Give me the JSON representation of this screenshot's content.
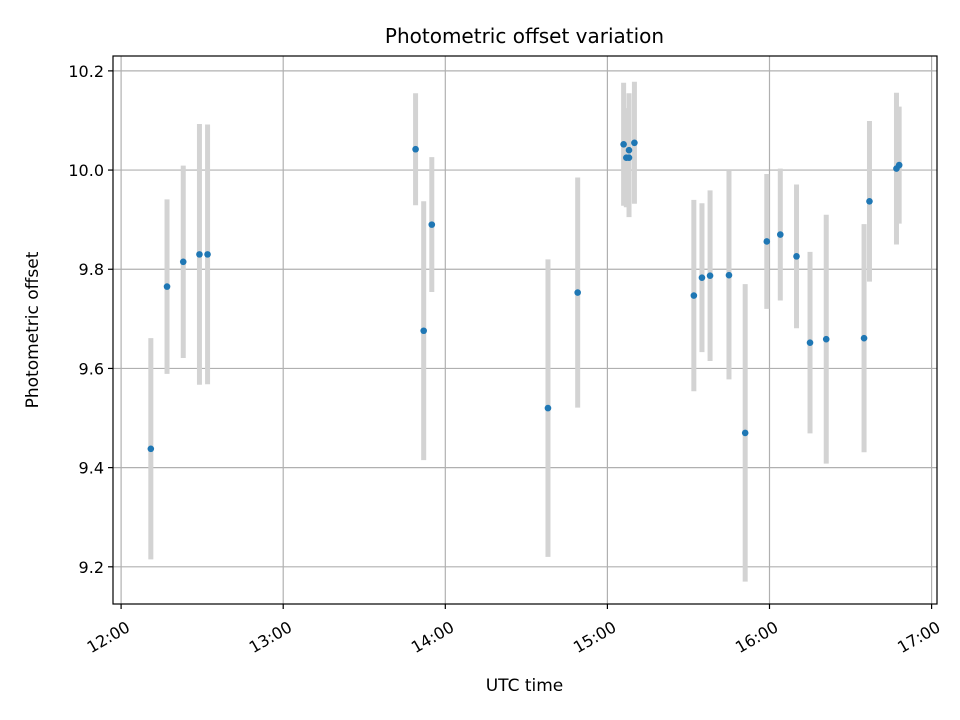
{
  "chart_data": {
    "type": "scatter",
    "title": "Photometric offset variation",
    "xlabel": "UTC time",
    "ylabel": "Photometric offset",
    "xlim": [
      "11:57",
      "17:02"
    ],
    "ylim": [
      9.125,
      10.23
    ],
    "x_ticks": [
      "12:00",
      "13:00",
      "14:00",
      "15:00",
      "16:00",
      "17:00"
    ],
    "y_ticks": [
      9.2,
      9.4,
      9.6,
      9.8,
      10.0,
      10.2
    ],
    "grid": true,
    "point_color": "#1f77b4",
    "errorbar_color": "#d3d3d3",
    "points": [
      {
        "t": "12:11",
        "y": 9.438,
        "err": 0.223
      },
      {
        "t": "12:17",
        "y": 9.765,
        "err": 0.176
      },
      {
        "t": "12:23",
        "y": 9.815,
        "err": 0.194
      },
      {
        "t": "12:29",
        "y": 9.83,
        "err": 0.263
      },
      {
        "t": "12:32",
        "y": 9.83,
        "err": 0.262
      },
      {
        "t": "13:49",
        "y": 10.042,
        "err": 0.113
      },
      {
        "t": "13:52",
        "y": 9.676,
        "err": 0.261
      },
      {
        "t": "13:55",
        "y": 9.89,
        "err": 0.136
      },
      {
        "t": "14:38",
        "y": 9.52,
        "err": 0.3
      },
      {
        "t": "14:49",
        "y": 9.753,
        "err": 0.232
      },
      {
        "t": "15:06",
        "y": 10.052,
        "err": 0.124
      },
      {
        "t": "15:07",
        "y": 10.025,
        "err": 0.1
      },
      {
        "t": "15:08",
        "y": 10.04,
        "err": 0.115
      },
      {
        "t": "15:08",
        "y": 10.025,
        "err": 0.12
      },
      {
        "t": "15:10",
        "y": 10.055,
        "err": 0.123
      },
      {
        "t": "15:32",
        "y": 9.747,
        "err": 0.193
      },
      {
        "t": "15:35",
        "y": 9.783,
        "err": 0.15
      },
      {
        "t": "15:38",
        "y": 9.787,
        "err": 0.172
      },
      {
        "t": "15:45",
        "y": 9.788,
        "err": 0.21
      },
      {
        "t": "15:51",
        "y": 9.47,
        "err": 0.3
      },
      {
        "t": "15:59",
        "y": 9.856,
        "err": 0.136
      },
      {
        "t": "16:04",
        "y": 9.87,
        "err": 0.133
      },
      {
        "t": "16:10",
        "y": 9.826,
        "err": 0.145
      },
      {
        "t": "16:15",
        "y": 9.652,
        "err": 0.183
      },
      {
        "t": "16:21",
        "y": 9.659,
        "err": 0.251
      },
      {
        "t": "16:35",
        "y": 9.661,
        "err": 0.23
      },
      {
        "t": "16:37",
        "y": 9.937,
        "err": 0.162
      },
      {
        "t": "16:47",
        "y": 10.003,
        "err": 0.153
      },
      {
        "t": "16:48",
        "y": 10.01,
        "err": 0.118
      }
    ]
  }
}
